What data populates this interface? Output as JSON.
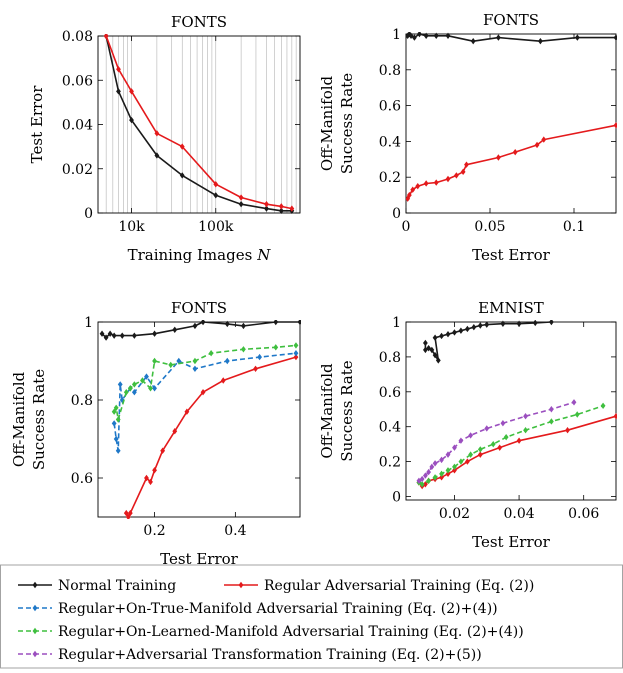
{
  "colors": {
    "normal": "#1a1a1a",
    "regular_adv": "#e41a1c",
    "true_manifold": "#1f78c8",
    "learned_manifold": "#3fbf3f",
    "transformation": "#9b4fbf"
  },
  "legend": {
    "items": [
      {
        "key": "normal",
        "label": "Normal Training",
        "dashed": false
      },
      {
        "key": "regular_adv",
        "label": "Regular Adversarial Training (Eq. (2))",
        "dashed": false
      },
      {
        "key": "true_manifold",
        "label": "Regular+On-True-Manifold Adversarial Training (Eq. (2)+(4))",
        "dashed": true
      },
      {
        "key": "learned_manifold",
        "label": "Regular+On-Learned-Manifold Adversarial Training (Eq. (2)+(4))",
        "dashed": true
      },
      {
        "key": "transformation",
        "label": "Regular+Adversarial Transformation Training (Eq. (2)+(5))",
        "dashed": true
      }
    ]
  },
  "chart_data": [
    {
      "type": "line",
      "title": "FONTS",
      "xlabel": "Training Images",
      "xlabel_var": "N",
      "ylabel": "Test Error",
      "xscale": "log",
      "xlim": [
        4000,
        1000000
      ],
      "ylim": [
        0,
        0.08
      ],
      "xticks": [
        10000,
        100000
      ],
      "xtick_labels": [
        "10k",
        "100k"
      ],
      "yticks": [
        0,
        0.02,
        0.04,
        0.06,
        0.08
      ],
      "ytick_labels": [
        "0",
        "0.02",
        "0.04",
        "0.06",
        "0.08"
      ],
      "grid": "x-minor",
      "series": [
        {
          "key": "normal",
          "x": [
            5000,
            7000,
            10000,
            20000,
            40000,
            100000,
            200000,
            400000,
            600000,
            800000
          ],
          "y": [
            0.08,
            0.055,
            0.042,
            0.026,
            0.017,
            0.008,
            0.004,
            0.002,
            0.001,
            0.001
          ]
        },
        {
          "key": "regular_adv",
          "x": [
            5000,
            7000,
            10000,
            20000,
            40000,
            100000,
            200000,
            400000,
            600000,
            800000
          ],
          "y": [
            0.08,
            0.065,
            0.055,
            0.036,
            0.03,
            0.013,
            0.007,
            0.004,
            0.003,
            0.002
          ]
        }
      ]
    },
    {
      "type": "line",
      "title": "FONTS",
      "xlabel": "Test Error",
      "ylabel": "Off-Manifold Success Rate",
      "xlim": [
        0,
        0.125
      ],
      "ylim": [
        0,
        1
      ],
      "xticks": [
        0,
        0.05,
        0.1
      ],
      "xtick_labels": [
        "0",
        "0.05",
        "0.1"
      ],
      "yticks": [
        0,
        0.2,
        0.4,
        0.6,
        0.8,
        1
      ],
      "ytick_labels": [
        "0",
        "0.2",
        "0.4",
        "0.6",
        "0.8",
        "1"
      ],
      "series": [
        {
          "key": "normal",
          "x": [
            0.001,
            0.002,
            0.003,
            0.005,
            0.008,
            0.012,
            0.018,
            0.025,
            0.04,
            0.055,
            0.08,
            0.102,
            0.125
          ],
          "y": [
            0.99,
            1.0,
            0.99,
            0.98,
            1.0,
            0.99,
            0.99,
            0.99,
            0.96,
            0.98,
            0.96,
            0.98,
            0.98
          ]
        },
        {
          "key": "regular_adv",
          "x": [
            0.001,
            0.002,
            0.004,
            0.007,
            0.012,
            0.018,
            0.025,
            0.03,
            0.034,
            0.036,
            0.055,
            0.065,
            0.078,
            0.082,
            0.125
          ],
          "y": [
            0.08,
            0.1,
            0.13,
            0.15,
            0.165,
            0.17,
            0.19,
            0.21,
            0.23,
            0.27,
            0.31,
            0.34,
            0.38,
            0.41,
            0.49
          ]
        }
      ]
    },
    {
      "type": "line",
      "title": "FONTS",
      "xlabel": "Test Error",
      "ylabel": "Off-Manifold Success Rate",
      "xlim": [
        0.06,
        0.56
      ],
      "ylim": [
        0.5,
        1
      ],
      "xticks": [
        0.2,
        0.4
      ],
      "xtick_labels": [
        "0.2",
        "0.4"
      ],
      "yticks": [
        0.6,
        0.8,
        1
      ],
      "ytick_labels": [
        "0.6",
        "0.8",
        "1"
      ],
      "series": [
        {
          "key": "normal",
          "x": [
            0.07,
            0.08,
            0.09,
            0.1,
            0.12,
            0.15,
            0.2,
            0.25,
            0.3,
            0.32,
            0.38,
            0.42,
            0.5,
            0.56
          ],
          "y": [
            0.97,
            0.96,
            0.97,
            0.965,
            0.965,
            0.965,
            0.97,
            0.98,
            0.99,
            1.0,
            0.995,
            0.99,
            1.0,
            1.0
          ]
        },
        {
          "key": "regular_adv",
          "x": [
            0.13,
            0.135,
            0.14,
            0.18,
            0.19,
            0.2,
            0.22,
            0.25,
            0.28,
            0.32,
            0.37,
            0.45,
            0.55
          ],
          "y": [
            0.51,
            0.5,
            0.51,
            0.6,
            0.59,
            0.62,
            0.67,
            0.72,
            0.77,
            0.82,
            0.85,
            0.88,
            0.91
          ]
        },
        {
          "key": "true_manifold",
          "x": [
            0.1,
            0.105,
            0.11,
            0.115,
            0.12,
            0.14,
            0.15,
            0.18,
            0.2,
            0.26,
            0.3,
            0.38,
            0.46,
            0.55
          ],
          "y": [
            0.74,
            0.7,
            0.67,
            0.84,
            0.8,
            0.83,
            0.82,
            0.86,
            0.83,
            0.9,
            0.88,
            0.9,
            0.91,
            0.92
          ]
        },
        {
          "key": "learned_manifold",
          "x": [
            0.1,
            0.105,
            0.11,
            0.13,
            0.14,
            0.15,
            0.17,
            0.19,
            0.2,
            0.24,
            0.3,
            0.34,
            0.42,
            0.5,
            0.55
          ],
          "y": [
            0.77,
            0.78,
            0.75,
            0.82,
            0.83,
            0.84,
            0.85,
            0.83,
            0.9,
            0.89,
            0.9,
            0.92,
            0.93,
            0.935,
            0.94
          ]
        }
      ]
    },
    {
      "type": "line",
      "title": "EMNIST",
      "xlabel": "Test Error",
      "ylabel": "Off-Manifold Success Rate",
      "xlim": [
        0.005,
        0.07
      ],
      "ylim": [
        -0.02,
        1
      ],
      "xticks": [
        0.02,
        0.04,
        0.06
      ],
      "xtick_labels": [
        "0.02",
        "0.04",
        "0.06"
      ],
      "yticks": [
        0,
        0.2,
        0.4,
        0.6,
        0.8,
        1
      ],
      "ytick_labels": [
        "0",
        "0.2",
        "0.4",
        "0.6",
        "0.8",
        "1"
      ],
      "series": [
        {
          "key": "normal",
          "x": [
            0.011,
            0.011,
            0.012,
            0.013,
            0.014,
            0.015,
            0.014,
            0.016,
            0.018,
            0.02,
            0.022,
            0.024,
            0.026,
            0.028,
            0.03,
            0.035,
            0.04,
            0.045,
            0.05
          ],
          "y": [
            0.88,
            0.84,
            0.85,
            0.84,
            0.81,
            0.78,
            0.91,
            0.92,
            0.93,
            0.94,
            0.95,
            0.96,
            0.97,
            0.98,
            0.985,
            0.99,
            0.99,
            0.995,
            1.0
          ]
        },
        {
          "key": "regular_adv",
          "x": [
            0.009,
            0.01,
            0.011,
            0.012,
            0.014,
            0.016,
            0.018,
            0.02,
            0.024,
            0.028,
            0.034,
            0.04,
            0.055,
            0.07
          ],
          "y": [
            0.08,
            0.06,
            0.07,
            0.09,
            0.1,
            0.11,
            0.13,
            0.15,
            0.2,
            0.24,
            0.28,
            0.32,
            0.38,
            0.46
          ]
        },
        {
          "key": "learned_manifold",
          "x": [
            0.009,
            0.01,
            0.012,
            0.014,
            0.016,
            0.018,
            0.02,
            0.022,
            0.025,
            0.028,
            0.032,
            0.036,
            0.042,
            0.05,
            0.058,
            0.066
          ],
          "y": [
            0.08,
            0.07,
            0.09,
            0.11,
            0.13,
            0.15,
            0.17,
            0.2,
            0.24,
            0.27,
            0.3,
            0.34,
            0.38,
            0.43,
            0.47,
            0.52
          ]
        },
        {
          "key": "transformation",
          "x": [
            0.009,
            0.01,
            0.011,
            0.012,
            0.013,
            0.014,
            0.016,
            0.018,
            0.02,
            0.022,
            0.025,
            0.03,
            0.035,
            0.042,
            0.05,
            0.057
          ],
          "y": [
            0.09,
            0.1,
            0.12,
            0.14,
            0.17,
            0.19,
            0.21,
            0.24,
            0.28,
            0.32,
            0.35,
            0.39,
            0.42,
            0.46,
            0.5,
            0.54
          ]
        }
      ]
    }
  ]
}
